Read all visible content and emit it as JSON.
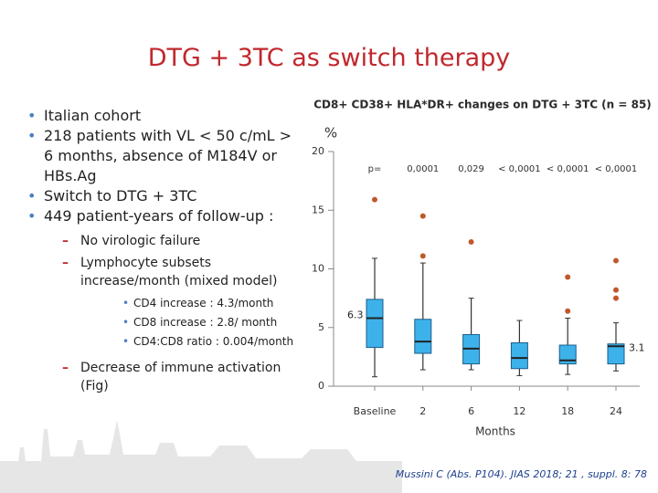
{
  "title": "DTG + 3TC as switch therapy",
  "bullets": [
    {
      "text": "Italian cohort"
    },
    {
      "text": "218 patients with VL < 50 c/mL > 6 months, absence of M184V or HBs.Ag"
    },
    {
      "text": "Switch to DTG + 3TC"
    },
    {
      "text": "449 patient-years of follow-up :",
      "sub": [
        {
          "text": "No virologic failure"
        },
        {
          "text": "Lymphocyte subsets increase/month (mixed model)",
          "sub": [
            "CD4 increase : 4.3/month",
            "CD8 increase : 2.8/ month",
            "CD4:CD8 ratio : 0.004/month"
          ]
        },
        {
          "text": "Decrease of immune activation (Fig)"
        }
      ]
    }
  ],
  "citation": "Mussini C (Abs. P104). JIAS 2018; 21 , suppl. 8: 78",
  "chart_data": {
    "type": "box",
    "title": "CD8+ CD38+ HLA*DR+ changes on DTG + 3TC (n = 85)",
    "y_label": "%",
    "x_label": "Months",
    "categories": [
      "Baseline",
      "2",
      "6",
      "12",
      "18",
      "24"
    ],
    "ylim": [
      0,
      20
    ],
    "yticks": [
      0,
      5,
      10,
      15,
      20
    ],
    "box_color": "#3db2ea",
    "outlier_color": "#c0582e",
    "boxes": [
      {
        "min": 0.8,
        "q1": 3.3,
        "median": 5.8,
        "q3": 7.4,
        "max": 10.9,
        "outliers": [
          15.9
        ]
      },
      {
        "min": 1.4,
        "q1": 2.8,
        "median": 3.8,
        "q3": 5.7,
        "max": 10.5,
        "outliers": [
          14.5,
          11.1
        ]
      },
      {
        "min": 1.4,
        "q1": 1.9,
        "median": 3.2,
        "q3": 4.4,
        "max": 7.5,
        "outliers": [
          12.3
        ]
      },
      {
        "min": 0.9,
        "q1": 1.5,
        "median": 2.4,
        "q3": 3.7,
        "max": 5.6,
        "outliers": []
      },
      {
        "min": 1.0,
        "q1": 1.9,
        "median": 2.2,
        "q3": 3.5,
        "max": 5.8,
        "outliers": [
          9.3,
          6.4
        ]
      },
      {
        "min": 1.3,
        "q1": 1.9,
        "median": 3.4,
        "q3": 3.6,
        "max": 5.4,
        "outliers": [
          10.7,
          8.2,
          7.5
        ]
      }
    ],
    "p_label": "p=",
    "p_values": [
      "0,0001",
      "0,029",
      "< 0,0001",
      "< 0,0001",
      "< 0,0001"
    ],
    "annotations": [
      "6.3",
      "3.1"
    ]
  }
}
